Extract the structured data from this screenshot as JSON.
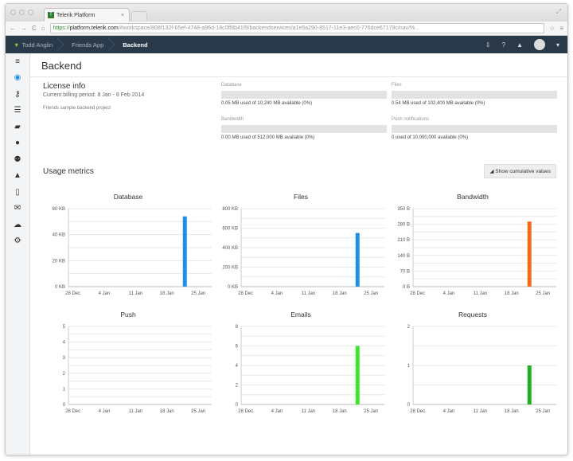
{
  "browser": {
    "tab_title": "Telerik Platform",
    "url_https": "https://",
    "url_host": "platform.telerik.com",
    "url_rest": "/#workspace/808f132f-65ef-4748-a96d-18c0ff8b41f9/backendservices/a1e5a290-8517-11e3-aec0-776dce67179c/nav/%..."
  },
  "nav": {
    "crumbs": [
      "Todd Anglin",
      "Friends App",
      "Backend"
    ]
  },
  "sidebar": {
    "items": [
      "menu-icon",
      "eye-icon",
      "key-icon",
      "list-icon",
      "folder-icon",
      "user-icon",
      "users-icon",
      "bell-icon",
      "tablet-icon",
      "mail-icon",
      "cloud-icon",
      "gear-icon"
    ],
    "active": 1
  },
  "page": {
    "title": "Backend"
  },
  "license": {
    "heading": "License info",
    "period": "Current billing period: 8 Jan - 8 Feb 2014",
    "description": "Friends sample backend project"
  },
  "quotas": [
    {
      "label": "Database",
      "usage": "0.05 MB used of 10,240 MB available (0%)",
      "percent": 0
    },
    {
      "label": "Files",
      "usage": "0.54 MB used of 102,400 MB available (0%)",
      "percent": 0
    },
    {
      "label": "Bandwidth",
      "usage": "0.00 MB used of 512,000 MB available (0%)",
      "percent": 0
    },
    {
      "label": "Push notifications",
      "usage": "0 used of 10,000,000 available (0%)",
      "percent": 0
    }
  ],
  "usage": {
    "heading": "Usage metrics",
    "cumulative_button": "Show cumulative values"
  },
  "chart_data": [
    {
      "type": "bar",
      "title": "Database",
      "xlim": [
        "2013-12-27",
        "2014-01-28"
      ],
      "xticks": [
        "28 Dec",
        "4 Jan",
        "11 Jan",
        "18 Jan",
        "25 Jan"
      ],
      "yticks": [
        "0 KB",
        "20 KB",
        "40 KB",
        "60 KB"
      ],
      "ylim": [
        0,
        60
      ],
      "x": [
        "2014-01-22"
      ],
      "values": [
        54
      ],
      "color": "#1e90e8",
      "grid": true
    },
    {
      "type": "bar",
      "title": "Files",
      "xlim": [
        "2013-12-27",
        "2014-01-28"
      ],
      "xticks": [
        "28 Dec",
        "4 Jan",
        "11 Jan",
        "18 Jan",
        "25 Jan"
      ],
      "yticks": [
        "0 KB",
        "200 KB",
        "400 KB",
        "600 KB",
        "800 KB"
      ],
      "ylim": [
        0,
        800
      ],
      "x": [
        "2014-01-22"
      ],
      "values": [
        550
      ],
      "color": "#1e90e8",
      "grid": true
    },
    {
      "type": "bar",
      "title": "Bandwidth",
      "xlim": [
        "2013-12-27",
        "2014-01-28"
      ],
      "xticks": [
        "28 Dec",
        "4 Jan",
        "11 Jan",
        "18 Jan",
        "25 Jan"
      ],
      "yticks": [
        "0 B",
        "70 B",
        "140 B",
        "210 B",
        "280 B",
        "350 B"
      ],
      "ylim": [
        0,
        350
      ],
      "x": [
        "2014-01-22"
      ],
      "values": [
        292
      ],
      "color": "#f26b1d",
      "grid": true
    },
    {
      "type": "bar",
      "title": "Push",
      "xlim": [
        "2013-12-27",
        "2014-01-28"
      ],
      "xticks": [
        "28 Dec",
        "4 Jan",
        "11 Jan",
        "18 Jan",
        "25 Jan"
      ],
      "yticks": [
        "0",
        "1",
        "2",
        "3",
        "4",
        "5"
      ],
      "ylim": [
        0,
        5
      ],
      "x": [],
      "values": [],
      "color": "#1e90e8",
      "grid": true
    },
    {
      "type": "bar",
      "title": "Emails",
      "xlim": [
        "2013-12-27",
        "2014-01-28"
      ],
      "xticks": [
        "28 Dec",
        "4 Jan",
        "11 Jan",
        "18 Jan",
        "25 Jan"
      ],
      "yticks": [
        "0",
        "2",
        "4",
        "6",
        "8"
      ],
      "ylim": [
        0,
        8
      ],
      "x": [
        "2014-01-22"
      ],
      "values": [
        6
      ],
      "color": "#3ee62a",
      "grid": true
    },
    {
      "type": "bar",
      "title": "Requests",
      "xlim": [
        "2013-12-27",
        "2014-01-28"
      ],
      "xticks": [
        "28 Dec",
        "4 Jan",
        "11 Jan",
        "18 Jan",
        "25 Jan"
      ],
      "yticks": [
        "0",
        "1",
        "2"
      ],
      "ylim": [
        0,
        2
      ],
      "x": [
        "2014-01-22"
      ],
      "values": [
        1
      ],
      "color": "#22b022",
      "grid": true
    }
  ]
}
